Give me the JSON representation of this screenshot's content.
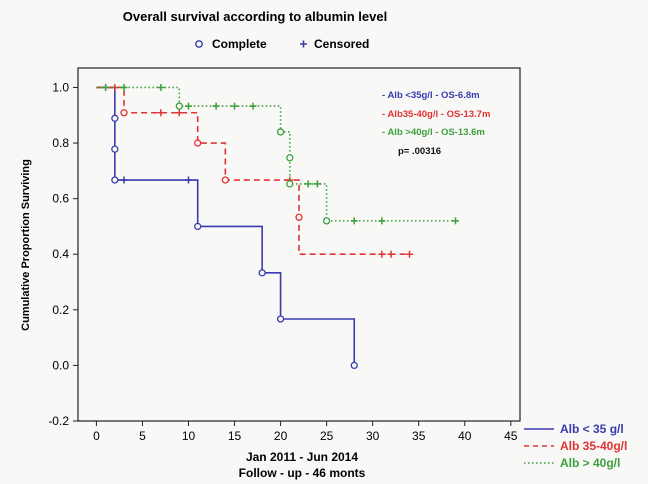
{
  "chart_data": {
    "type": "line",
    "title": "Overall survival according to albumin level",
    "legend_markers": [
      {
        "label": "Complete",
        "symbol": "circle",
        "color": "#3b3ba8"
      },
      {
        "label": "Censored",
        "symbol": "plus",
        "color": "#3b3ba8"
      }
    ],
    "xlabel_line1": "Jan 2011 - Jun 2014",
    "xlabel_line2": "Follow - up - 46 monts",
    "ylabel": "Cumulative Proportion Surviving",
    "xlim": [
      -2,
      46
    ],
    "ylim": [
      -0.2,
      1.07
    ],
    "x_ticks": [
      "0",
      "5",
      "10",
      "15",
      "20",
      "25",
      "30",
      "35",
      "40",
      "45"
    ],
    "y_ticks": [
      "-0.2",
      "0.0",
      "0.2",
      "0.4",
      "0.6",
      "0.8",
      "1.0"
    ],
    "grid": false,
    "series": [
      {
        "name": "Alb < 35 g/l",
        "color": "#3b3bb0",
        "style": "solid",
        "steps": [
          [
            0,
            1.0
          ],
          [
            2,
            0.667
          ],
          [
            11,
            0.5
          ],
          [
            18,
            0.333
          ],
          [
            20,
            0.167
          ],
          [
            28,
            0.0
          ]
        ],
        "complete": [
          [
            2,
            0.889
          ],
          [
            2,
            0.778
          ],
          [
            2,
            0.667
          ],
          [
            11,
            0.5
          ],
          [
            18,
            0.333
          ],
          [
            20,
            0.167
          ],
          [
            28,
            0.0
          ]
        ],
        "censored": [
          [
            3,
            0.667
          ],
          [
            10,
            0.667
          ]
        ]
      },
      {
        "name": "Alb 35-40g/l",
        "color": "#e03434",
        "style": "dashed",
        "steps": [
          [
            0,
            1.0
          ],
          [
            3,
            0.909
          ],
          [
            11,
            0.8
          ],
          [
            14,
            0.667
          ],
          [
            22,
            0.533
          ],
          [
            22,
            0.4
          ]
        ],
        "complete": [
          [
            3,
            0.909
          ],
          [
            11,
            0.8
          ],
          [
            14,
            0.667
          ],
          [
            22,
            0.533
          ]
        ],
        "censored": [
          [
            2,
            1.0
          ],
          [
            7,
            0.909
          ],
          [
            9,
            0.909
          ],
          [
            21,
            0.667
          ],
          [
            31,
            0.4
          ],
          [
            32,
            0.4
          ],
          [
            34,
            0.4
          ]
        ],
        "end_x": 34
      },
      {
        "name": "Alb > 40g/l",
        "color": "#3ca03c",
        "style": "dotted",
        "steps": [
          [
            0,
            1.0
          ],
          [
            9,
            0.933
          ],
          [
            20,
            0.84
          ],
          [
            21,
            0.747
          ],
          [
            21,
            0.653
          ],
          [
            25,
            0.52
          ]
        ],
        "complete": [
          [
            9,
            0.933
          ],
          [
            20,
            0.84
          ],
          [
            21,
            0.747
          ],
          [
            21,
            0.653
          ],
          [
            25,
            0.52
          ]
        ],
        "censored": [
          [
            1,
            1.0
          ],
          [
            3,
            1.0
          ],
          [
            7,
            1.0
          ],
          [
            10,
            0.933
          ],
          [
            13,
            0.933
          ],
          [
            15,
            0.933
          ],
          [
            17,
            0.933
          ],
          [
            23,
            0.653
          ],
          [
            24,
            0.653
          ],
          [
            28,
            0.52
          ],
          [
            31,
            0.52
          ],
          [
            39,
            0.52
          ]
        ],
        "end_x": 39
      }
    ],
    "annotations": [
      {
        "text": "- Alb <35g/l -  OS-6.8m",
        "color": "#3b3bb0"
      },
      {
        "text": "- Alb35-40g/l -  OS-13.7m",
        "color": "#e03434"
      },
      {
        "text": "- Alb >40g/l - OS-13.6m",
        "color": "#3ca03c"
      },
      {
        "text": "p= .00316",
        "color": "#111111"
      }
    ],
    "legend_bottom_right": [
      {
        "label": "Alb < 35 g/l",
        "color": "#3b3bb0",
        "style": "solid"
      },
      {
        "label": "Alb 35-40g/l",
        "color": "#e03434",
        "style": "dashed"
      },
      {
        "label": "Alb > 40g/l",
        "color": "#3ca03c",
        "style": "dotted"
      }
    ]
  }
}
